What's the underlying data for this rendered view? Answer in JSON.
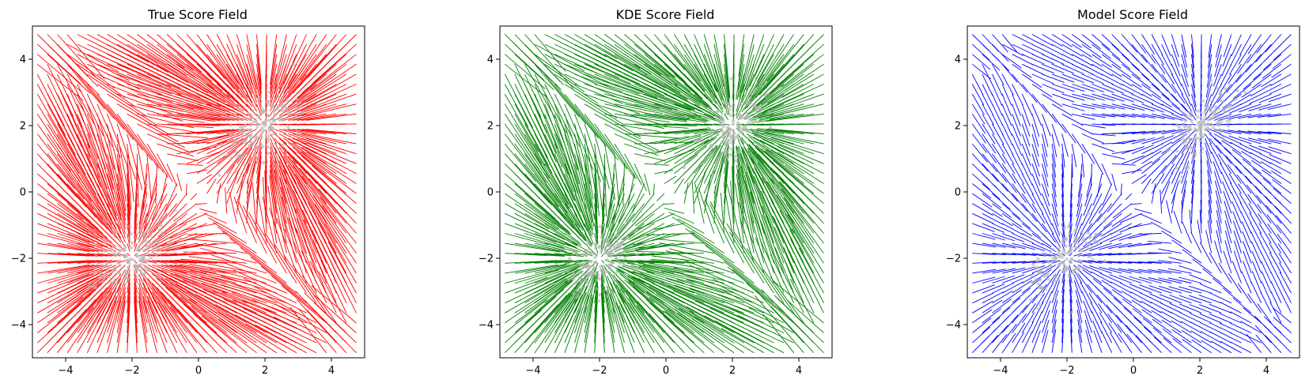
{
  "chart_data": [
    {
      "type": "quiver",
      "title": "True Score Field",
      "xlim": [
        -5,
        5
      ],
      "ylim": [
        -5,
        5
      ],
      "xticks": [
        -4,
        -2,
        0,
        2,
        4
      ],
      "yticks": [
        -4,
        -2,
        0,
        2,
        4
      ],
      "field_color": "#ff0000",
      "grid": false,
      "modes": [
        [
          2,
          2
        ],
        [
          -2,
          -2
        ]
      ],
      "points_color": "#b3b3b3"
    },
    {
      "type": "quiver",
      "title": "KDE Score Field",
      "xlim": [
        -5,
        5
      ],
      "ylim": [
        -5,
        5
      ],
      "xticks": [
        -4,
        -2,
        0,
        2,
        4
      ],
      "yticks": [
        -4,
        -2,
        0,
        2,
        4
      ],
      "field_color": "#008000",
      "grid": false,
      "modes": [
        [
          2,
          2
        ],
        [
          -2,
          -2
        ]
      ],
      "points_color": "#b3b3b3"
    },
    {
      "type": "quiver",
      "title": "Model Score Field",
      "xlim": [
        -5,
        5
      ],
      "ylim": [
        -5,
        5
      ],
      "xticks": [
        -4,
        -2,
        0,
        2,
        4
      ],
      "yticks": [
        -4,
        -2,
        0,
        2,
        4
      ],
      "field_color": "#0000ff",
      "grid": false,
      "modes": [
        [
          2,
          2
        ],
        [
          -2,
          -2
        ]
      ],
      "points_color": "#b3b3b3"
    }
  ]
}
